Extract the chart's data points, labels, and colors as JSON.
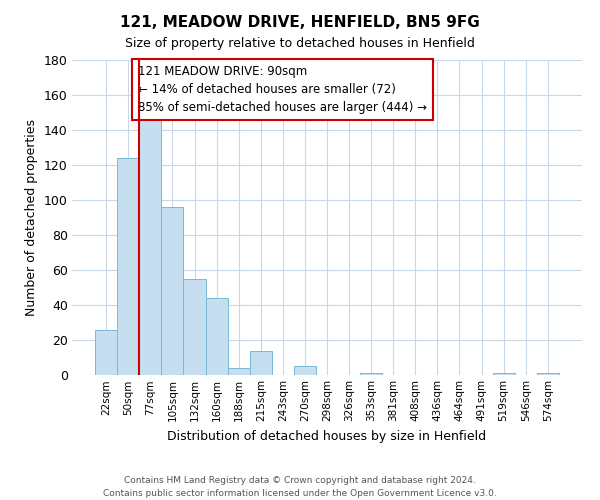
{
  "title": "121, MEADOW DRIVE, HENFIELD, BN5 9FG",
  "subtitle": "Size of property relative to detached houses in Henfield",
  "xlabel": "Distribution of detached houses by size in Henfield",
  "ylabel": "Number of detached properties",
  "bin_labels": [
    "22sqm",
    "50sqm",
    "77sqm",
    "105sqm",
    "132sqm",
    "160sqm",
    "188sqm",
    "215sqm",
    "243sqm",
    "270sqm",
    "298sqm",
    "326sqm",
    "353sqm",
    "381sqm",
    "408sqm",
    "436sqm",
    "464sqm",
    "491sqm",
    "519sqm",
    "546sqm",
    "574sqm"
  ],
  "bar_heights": [
    26,
    124,
    147,
    96,
    55,
    44,
    4,
    14,
    0,
    5,
    0,
    0,
    1,
    0,
    0,
    0,
    0,
    0,
    1,
    0,
    1
  ],
  "bar_color": "#c5dff0",
  "bar_edge_color": "#7ab8d9",
  "ylim": [
    0,
    180
  ],
  "yticks": [
    0,
    20,
    40,
    60,
    80,
    100,
    120,
    140,
    160,
    180
  ],
  "vline_x": 2.0,
  "vline_color": "#cc0000",
  "annotation_title": "121 MEADOW DRIVE: 90sqm",
  "annotation_line1": "← 14% of detached houses are smaller (72)",
  "annotation_line2": "85% of semi-detached houses are larger (444) →",
  "footer_line1": "Contains HM Land Registry data © Crown copyright and database right 2024.",
  "footer_line2": "Contains public sector information licensed under the Open Government Licence v3.0.",
  "background_color": "#ffffff",
  "grid_color": "#c8d8e8"
}
